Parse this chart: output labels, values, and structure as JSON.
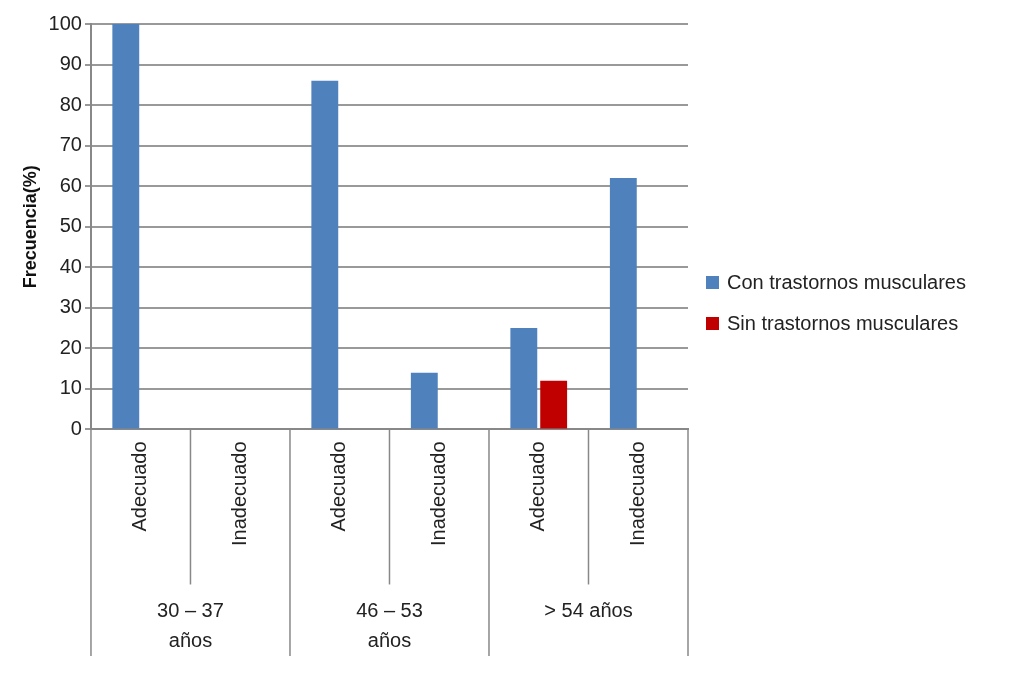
{
  "chart_data": {
    "type": "bar",
    "ylabel": "Frecuencia(%)",
    "categories": [
      "Adecuado",
      "Inadecuado",
      "Adecuado",
      "Inadecuado",
      "Adecuado",
      "Inadecuado"
    ],
    "series": [
      {
        "name": "Con trastornos musculares",
        "color": "#4f81bd",
        "values": [
          100,
          0,
          86,
          14,
          25,
          62
        ]
      },
      {
        "name": "Sin trastornos musculares",
        "color": "#c00000",
        "values": [
          0,
          0,
          0,
          0,
          12,
          0
        ]
      }
    ],
    "ylim": [
      0,
      100
    ],
    "yticks": [
      0,
      10,
      20,
      30,
      40,
      50,
      60,
      70,
      80,
      90,
      100
    ],
    "grid": "y",
    "legend": "right",
    "annotations": [
      "30 – 37 años",
      "46 – 53 años",
      "> 54 años"
    ]
  }
}
